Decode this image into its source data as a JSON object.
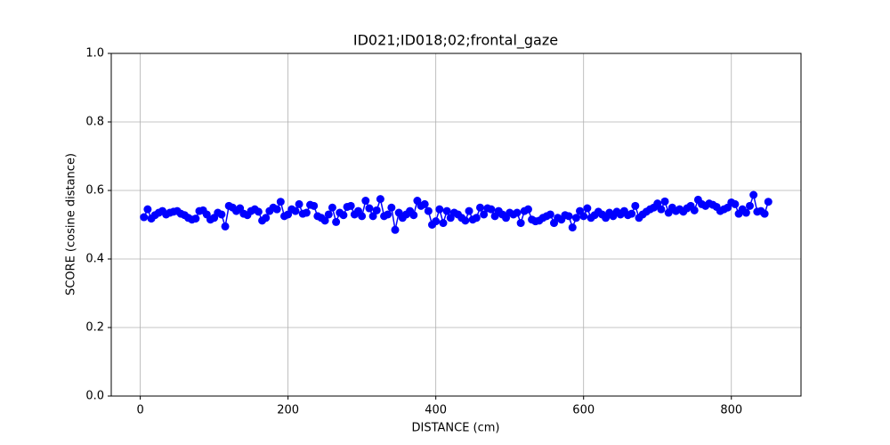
{
  "chart_data": {
    "type": "line",
    "title": "ID021;ID018;02;frontal_gaze",
    "x_label": "DISTANCE (cm)",
    "y_label": "SCORE (cosine distance)",
    "x": [
      5,
      10,
      15,
      20,
      25,
      30,
      35,
      40,
      45,
      50,
      55,
      60,
      65,
      70,
      75,
      80,
      85,
      90,
      95,
      100,
      105,
      110,
      115,
      120,
      125,
      130,
      135,
      140,
      145,
      150,
      155,
      160,
      165,
      170,
      175,
      180,
      185,
      190,
      195,
      200,
      205,
      210,
      215,
      220,
      225,
      230,
      235,
      240,
      245,
      250,
      255,
      260,
      265,
      270,
      275,
      280,
      285,
      290,
      295,
      300,
      305,
      310,
      315,
      320,
      325,
      330,
      335,
      340,
      345,
      350,
      355,
      360,
      365,
      370,
      375,
      380,
      385,
      390,
      395,
      400,
      405,
      410,
      415,
      420,
      425,
      430,
      435,
      440,
      445,
      450,
      455,
      460,
      465,
      470,
      475,
      480,
      485,
      490,
      495,
      500,
      505,
      510,
      515,
      520,
      525,
      530,
      535,
      540,
      545,
      550,
      555,
      560,
      565,
      570,
      575,
      580,
      585,
      590,
      595,
      600,
      605,
      610,
      615,
      620,
      625,
      630,
      635,
      640,
      645,
      650,
      655,
      660,
      665,
      670,
      675,
      680,
      685,
      690,
      695,
      700,
      705,
      710,
      715,
      720,
      725,
      730,
      735,
      740,
      745,
      750,
      755,
      760,
      765,
      770,
      775,
      780,
      785,
      790,
      795,
      800,
      805,
      810,
      815,
      820,
      825,
      830,
      835,
      840,
      845,
      850
    ],
    "series": [
      {
        "name": "score",
        "color": "#0000ff",
        "values": [
          0.522,
          0.545,
          0.518,
          0.528,
          0.535,
          0.54,
          0.53,
          0.535,
          0.538,
          0.54,
          0.532,
          0.528,
          0.52,
          0.515,
          0.518,
          0.54,
          0.542,
          0.53,
          0.515,
          0.52,
          0.535,
          0.53,
          0.495,
          0.555,
          0.55,
          0.54,
          0.548,
          0.532,
          0.528,
          0.54,
          0.545,
          0.538,
          0.512,
          0.52,
          0.54,
          0.55,
          0.545,
          0.567,
          0.525,
          0.53,
          0.545,
          0.54,
          0.56,
          0.532,
          0.535,
          0.558,
          0.555,
          0.525,
          0.52,
          0.512,
          0.53,
          0.55,
          0.508,
          0.535,
          0.528,
          0.552,
          0.555,
          0.53,
          0.54,
          0.525,
          0.57,
          0.548,
          0.525,
          0.542,
          0.575,
          0.525,
          0.53,
          0.55,
          0.485,
          0.535,
          0.52,
          0.53,
          0.54,
          0.528,
          0.57,
          0.555,
          0.56,
          0.54,
          0.5,
          0.51,
          0.545,
          0.505,
          0.54,
          0.52,
          0.535,
          0.53,
          0.52,
          0.512,
          0.54,
          0.515,
          0.52,
          0.55,
          0.53,
          0.548,
          0.545,
          0.525,
          0.54,
          0.53,
          0.52,
          0.535,
          0.53,
          0.535,
          0.505,
          0.54,
          0.545,
          0.515,
          0.51,
          0.512,
          0.52,
          0.525,
          0.53,
          0.505,
          0.52,
          0.515,
          0.528,
          0.525,
          0.492,
          0.52,
          0.54,
          0.525,
          0.548,
          0.52,
          0.528,
          0.538,
          0.53,
          0.52,
          0.535,
          0.525,
          0.538,
          0.53,
          0.54,
          0.528,
          0.532,
          0.555,
          0.52,
          0.53,
          0.538,
          0.545,
          0.55,
          0.562,
          0.545,
          0.568,
          0.535,
          0.55,
          0.54,
          0.545,
          0.538,
          0.548,
          0.555,
          0.542,
          0.573,
          0.56,
          0.555,
          0.562,
          0.558,
          0.552,
          0.54,
          0.545,
          0.55,
          0.565,
          0.56,
          0.532,
          0.545,
          0.535,
          0.555,
          0.587,
          0.538,
          0.54,
          0.532,
          0.567
        ]
      }
    ],
    "xlim": [
      -39.25,
      894.25
    ],
    "ylim": [
      0,
      1
    ],
    "xticks": [
      0,
      200,
      400,
      600,
      800
    ],
    "yticks": [
      {
        "value": 0,
        "label": "0.0"
      },
      {
        "value": 0.2,
        "label": "0.2"
      },
      {
        "value": 0.4,
        "label": "0.4"
      },
      {
        "value": 0.6,
        "label": "0.6"
      },
      {
        "value": 0.8,
        "label": "0.8"
      },
      {
        "value": 1,
        "label": "1.0"
      }
    ],
    "grid": true
  }
}
